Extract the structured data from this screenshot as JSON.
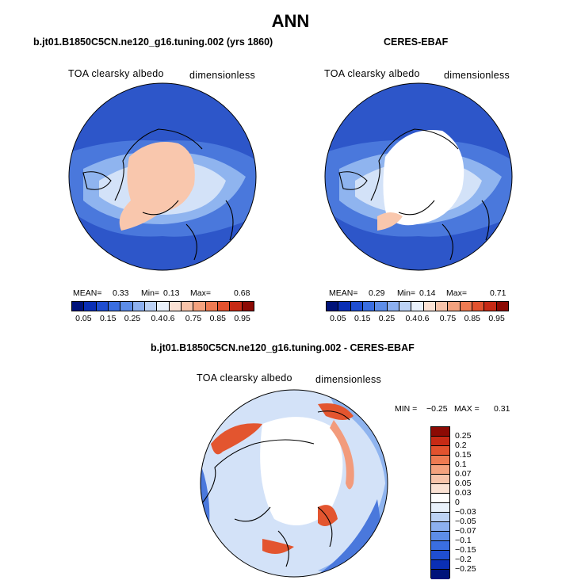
{
  "title": "ANN",
  "panels": [
    {
      "title": "b.jt01.B1850C5CN.ne120_g16.tuning.002 (yrs 1860)",
      "variable": "TOA clearsky albedo",
      "units": "dimensionless",
      "mean_label": "MEAN=",
      "mean": "0.33",
      "min_label": "Min=",
      "min": "0.13",
      "max_label": "Max=",
      "max": "0.68"
    },
    {
      "title": "CERES-EBAF",
      "variable": "TOA clearsky albedo",
      "units": "dimensionless",
      "mean_label": "MEAN=",
      "mean": "0.29",
      "min_label": "Min=",
      "min": "0.14",
      "max_label": "Max=",
      "max": "0.71"
    }
  ],
  "colorbar_top": {
    "labels": [
      "0.05",
      "0.15",
      "0.25",
      "0.4",
      "0.6",
      "0.75",
      "0.85",
      "0.95"
    ],
    "colors": [
      "#00137a",
      "#0a2fb5",
      "#1f4ed1",
      "#3a6ee0",
      "#5d8de8",
      "#8db0ef",
      "#bcd2f5",
      "#e9f1fb",
      "#fbe2d4",
      "#f8c4aa",
      "#f4a27e",
      "#ee7b52",
      "#e2522e",
      "#c72a15",
      "#8c0a04"
    ]
  },
  "diff_panel": {
    "title": "b.jt01.B1850C5CN.ne120_g16.tuning.002 - CERES-EBAF",
    "variable": "TOA clearsky albedo",
    "units": "dimensionless",
    "min_label": "MIN =",
    "min": "−0.25",
    "max_label": "MAX =",
    "max": "0.31"
  },
  "colorbar_diff": {
    "labels": [
      "0.25",
      "0.2",
      "0.15",
      "0.1",
      "0.07",
      "0.05",
      "0.03",
      "0",
      "−0.03",
      "−0.05",
      "−0.07",
      "−0.1",
      "−0.15",
      "−0.2",
      "−0.25"
    ],
    "colors": [
      "#8c0a04",
      "#c72a15",
      "#e2522e",
      "#ee7b52",
      "#f4a27e",
      "#f8c4aa",
      "#fbe2d4",
      "#ffffff",
      "#e9f1fb",
      "#bcd2f5",
      "#8db0ef",
      "#5d8de8",
      "#3a6ee0",
      "#1f4ed1",
      "#0a2fb5",
      "#00137a"
    ]
  },
  "map_colors": {
    "deep_blue": "#2d56c9",
    "mid_blue": "#4a78dc",
    "light_blue": "#8fb4ef",
    "pale_blue": "#d3e2f8",
    "white": "#ffffff",
    "salmon": "#f9c7ad",
    "red": "#e3552f",
    "light_red": "#f29b7c"
  }
}
